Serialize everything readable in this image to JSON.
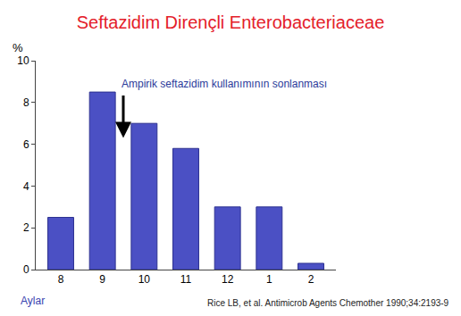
{
  "chart_data": {
    "type": "bar",
    "title": "Seftazidim Dirençli Enterobacteriaceae",
    "x_label": "Aylar",
    "y_label": "%",
    "categories": [
      "8",
      "9",
      "10",
      "11",
      "12",
      "1",
      "2"
    ],
    "values": [
      2.5,
      8.5,
      7.0,
      5.8,
      3.0,
      3.0,
      0.3
    ],
    "color": "#4b50c4",
    "ylim": [
      0,
      10
    ],
    "yticks": [
      0,
      2,
      4,
      6,
      8,
      10
    ],
    "grid": false,
    "annotations": [
      "Ampirik seftazidim kullanımının sonlanması",
      "Rice LB, et al. Antimicrob Agents Chemother 1990;34:2193-9"
    ]
  }
}
